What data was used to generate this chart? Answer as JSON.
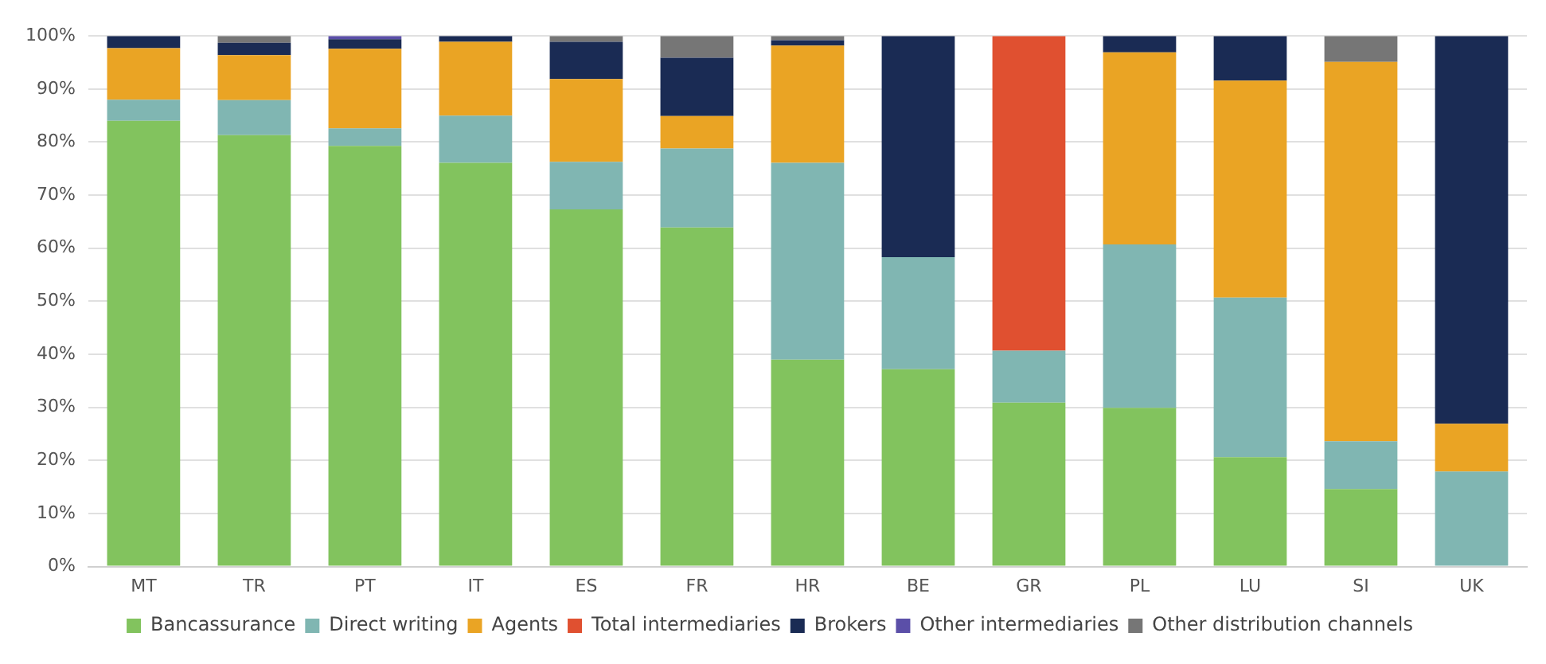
{
  "chart_data": {
    "type": "bar",
    "stacked": true,
    "categories": [
      "MT",
      "TR",
      "PT",
      "IT",
      "ES",
      "FR",
      "HR",
      "BE",
      "GR",
      "PL",
      "LU",
      "SI",
      "UK"
    ],
    "series": [
      {
        "name": "Bancassurance",
        "color": "#82c35e",
        "values": [
          84,
          81.3,
          79.3,
          76.1,
          67.3,
          63.9,
          39,
          37.2,
          30.9,
          29.9,
          20.6,
          14.6,
          0
        ]
      },
      {
        "name": "Direct writing",
        "color": "#80b6b2",
        "values": [
          4,
          6.6,
          3.3,
          8.9,
          9,
          14.9,
          37.1,
          21.1,
          9.8,
          30.8,
          30.1,
          9,
          17.9
        ]
      },
      {
        "name": "Agents",
        "color": "#eaa424",
        "values": [
          9.7,
          8.5,
          15,
          13.9,
          15.6,
          6.1,
          22.1,
          0,
          0,
          36.2,
          40.9,
          71.5,
          9
        ]
      },
      {
        "name": "Total intermediaries",
        "color": "#e05030",
        "values": [
          0,
          0,
          0,
          0,
          0,
          0,
          0,
          0,
          59.3,
          0,
          0,
          0,
          0
        ]
      },
      {
        "name": "Brokers",
        "color": "#1a2b54",
        "values": [
          2.3,
          2.3,
          1.8,
          1.1,
          7,
          11,
          1,
          41.7,
          0,
          3.1,
          8.4,
          0,
          73.1
        ]
      },
      {
        "name": "Other intermediaries",
        "color": "#5b4fa8",
        "values": [
          0,
          0,
          0.6,
          0,
          0,
          0,
          0,
          0,
          0,
          0,
          0,
          0,
          0
        ]
      },
      {
        "name": "Other distribution channels",
        "color": "#767676",
        "values": [
          0,
          1.3,
          0,
          0,
          1.1,
          4.1,
          0.8,
          0,
          0,
          0,
          0,
          4.9,
          0
        ]
      }
    ],
    "ylim": [
      0,
      100
    ],
    "yticks": [
      {
        "value": 0,
        "label": "0%"
      },
      {
        "value": 10,
        "label": "10%"
      },
      {
        "value": 20,
        "label": "20%"
      },
      {
        "value": 30,
        "label": "30%"
      },
      {
        "value": 40,
        "label": "40%"
      },
      {
        "value": 50,
        "label": "50%"
      },
      {
        "value": 60,
        "label": "60%"
      },
      {
        "value": 70,
        "label": "70%"
      },
      {
        "value": 80,
        "label": "80%"
      },
      {
        "value": 90,
        "label": "90%"
      },
      {
        "value": 100,
        "label": "100%"
      }
    ],
    "grid": "y",
    "legend": "bottom"
  }
}
